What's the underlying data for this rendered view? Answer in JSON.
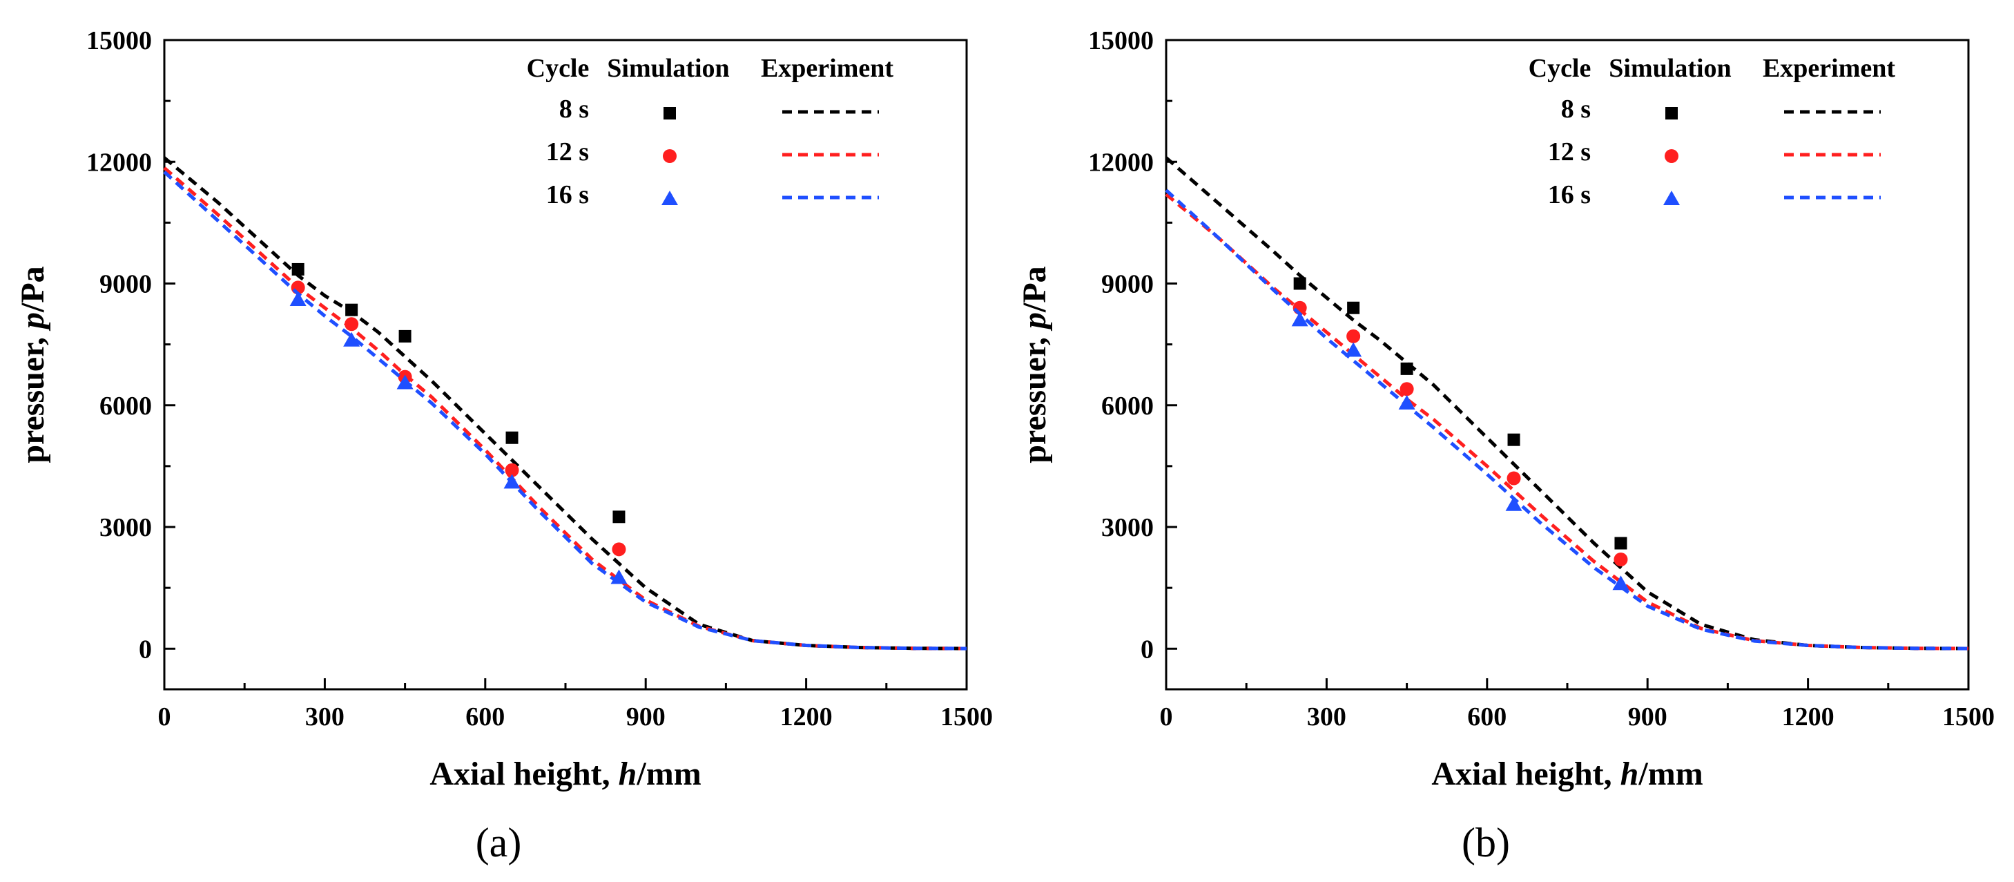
{
  "colors": {
    "8 s": "#000000",
    "12 s": "#ff1f1f",
    "16 s": "#1f4fff"
  },
  "legend": {
    "header_cycle": "Cycle",
    "header_simulation": "Simulation",
    "header_experiment": "Experiment",
    "rows": [
      {
        "cycle": "8 s",
        "marker": "square-marker-icon"
      },
      {
        "cycle": "12 s",
        "marker": "circle-marker-icon"
      },
      {
        "cycle": "16 s",
        "marker": "triangle-marker-icon"
      }
    ]
  },
  "chart_data": [
    {
      "panel_label": "(a)",
      "type": "line+scatter",
      "xlabel": "Axial height, h/mm",
      "xlabel_main": "Axial height, ",
      "xlabel_var": "h",
      "xlabel_unit": "/mm",
      "ylabel": "pressuer, p/Pa",
      "ylabel_main": "pressuer, ",
      "ylabel_var": "p",
      "ylabel_unit": "/Pa",
      "xlim": [
        0,
        1500
      ],
      "ylim": [
        -1000,
        15000
      ],
      "xticks": [
        "0",
        "300",
        "600",
        "900",
        "1200",
        "1500"
      ],
      "yticks": [
        "0",
        "3000",
        "6000",
        "9000",
        "12000",
        "15000"
      ],
      "legend_position": "top-right",
      "series": [
        {
          "name": "8 s",
          "simulation": {
            "x": [
              250,
              350,
              450,
              650,
              850
            ],
            "y": [
              9350,
              8350,
              7700,
              5200,
              3250
            ]
          },
          "experiment": {
            "x": [
              0,
              100,
              200,
              250,
              300,
              350,
              400,
              450,
              500,
              600,
              700,
              800,
              900,
              1000,
              1100,
              1200,
              1300,
              1400,
              1500
            ],
            "y": [
              12100,
              11000,
              9800,
              9200,
              8700,
              8300,
              7800,
              7200,
              6600,
              5300,
              4000,
              2700,
              1500,
              600,
              200,
              80,
              30,
              10,
              5
            ]
          }
        },
        {
          "name": "12 s",
          "simulation": {
            "x": [
              250,
              350,
              450,
              650,
              850
            ],
            "y": [
              8900,
              8000,
              6700,
              4400,
              2450
            ]
          },
          "experiment": {
            "x": [
              0,
              100,
              200,
              250,
              300,
              350,
              400,
              450,
              500,
              600,
              700,
              800,
              900,
              1000,
              1100,
              1200,
              1300,
              1400,
              1500
            ],
            "y": [
              11850,
              10700,
              9500,
              8900,
              8400,
              7900,
              7350,
              6750,
              6200,
              4900,
              3500,
              2200,
              1200,
              550,
              200,
              80,
              30,
              10,
              5
            ]
          }
        },
        {
          "name": "16 s",
          "simulation": {
            "x": [
              250,
              350,
              450,
              650,
              850
            ],
            "y": [
              8600,
              7600,
              6550,
              4100,
              1750
            ]
          },
          "experiment": {
            "x": [
              0,
              100,
              200,
              250,
              300,
              350,
              400,
              450,
              500,
              600,
              700,
              800,
              900,
              1000,
              1100,
              1200,
              1300,
              1400,
              1500
            ],
            "y": [
              11750,
              10550,
              9350,
              8750,
              8200,
              7700,
              7150,
              6600,
              6050,
              4800,
              3400,
              2100,
              1150,
              530,
              200,
              80,
              30,
              10,
              5
            ]
          }
        }
      ]
    },
    {
      "panel_label": "(b)",
      "type": "line+scatter",
      "xlabel": "Axial height, h/mm",
      "xlabel_main": "Axial height, ",
      "xlabel_var": "h",
      "xlabel_unit": "/mm",
      "ylabel": "pressuer, p/Pa",
      "ylabel_main": "pressuer, ",
      "ylabel_var": "p",
      "ylabel_unit": "/Pa",
      "xlim": [
        0,
        1500
      ],
      "ylim": [
        -1000,
        15000
      ],
      "xticks": [
        "0",
        "300",
        "600",
        "900",
        "1200",
        "1500"
      ],
      "yticks": [
        "0",
        "3000",
        "6000",
        "9000",
        "12000",
        "15000"
      ],
      "legend_position": "top-right",
      "series": [
        {
          "name": "8 s",
          "simulation": {
            "x": [
              250,
              350,
              450,
              650,
              850
            ],
            "y": [
              9000,
              8400,
              6900,
              5150,
              2600
            ]
          },
          "experiment": {
            "x": [
              0,
              100,
              200,
              250,
              300,
              350,
              400,
              450,
              500,
              600,
              700,
              800,
              900,
              1000,
              1100,
              1200,
              1300,
              1400,
              1500
            ],
            "y": [
              12100,
              10950,
              9800,
              9200,
              8650,
              8100,
              7600,
              7050,
              6500,
              5200,
              3900,
              2600,
              1400,
              600,
              220,
              80,
              30,
              10,
              5
            ]
          }
        },
        {
          "name": "12 s",
          "simulation": {
            "x": [
              250,
              350,
              450,
              650,
              850
            ],
            "y": [
              8400,
              7700,
              6400,
              4200,
              2200
            ]
          },
          "experiment": {
            "x": [
              0,
              100,
              200,
              250,
              300,
              350,
              400,
              450,
              500,
              600,
              700,
              800,
              900,
              1000,
              1100,
              1200,
              1300,
              1400,
              1500
            ],
            "y": [
              11200,
              10100,
              8900,
              8350,
              7800,
              7250,
              6700,
              6150,
              5650,
              4500,
              3300,
              2150,
              1150,
              500,
              200,
              80,
              30,
              10,
              5
            ]
          }
        },
        {
          "name": "16 s",
          "simulation": {
            "x": [
              250,
              350,
              450,
              650,
              850
            ],
            "y": [
              8100,
              7350,
              6050,
              3550,
              1600
            ]
          },
          "experiment": {
            "x": [
              0,
              100,
              200,
              250,
              300,
              350,
              400,
              450,
              500,
              600,
              700,
              800,
              900,
              1000,
              1100,
              1200,
              1300,
              1400,
              1500
            ],
            "y": [
              11300,
              10100,
              8850,
              8250,
              7650,
              7100,
              6550,
              6000,
              5450,
              4300,
              3100,
              2000,
              1050,
              480,
              190,
              80,
              30,
              10,
              5
            ]
          }
        }
      ]
    }
  ]
}
